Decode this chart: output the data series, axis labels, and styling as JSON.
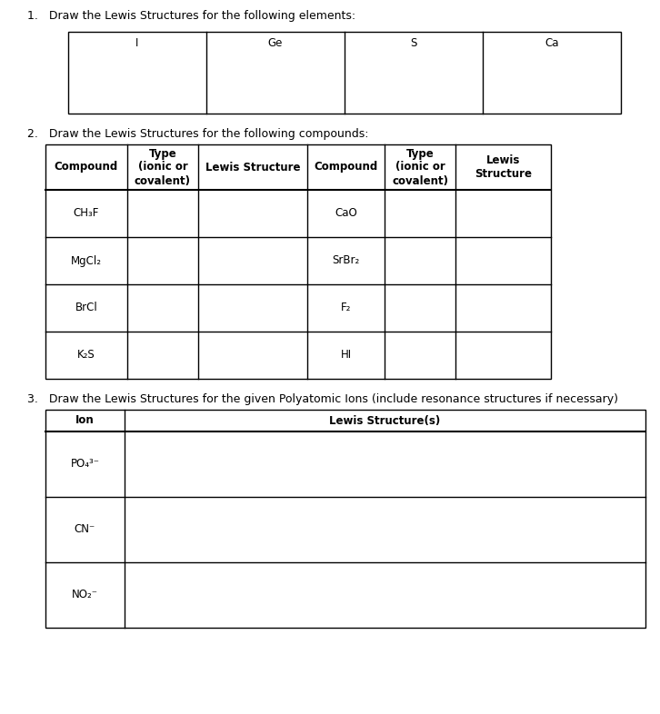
{
  "bg_color": "#ffffff",
  "q1_label": "1.   Draw the Lewis Structures for the following elements:",
  "q1_elements": [
    "I",
    "Ge",
    "S",
    "Ca"
  ],
  "q2_label": "2.   Draw the Lewis Structures for the following compounds:",
  "q2_headers_left": [
    "Compound",
    "Type\n(ionic or\ncovalent)",
    "Lewis Structure"
  ],
  "q2_headers_right": [
    "Compound",
    "Type\n(ionic or\ncovalent)",
    "Lewis\nStructure"
  ],
  "q2_compounds_left": [
    "CH₃F",
    "MgCl₂",
    "BrCl",
    "K₂S"
  ],
  "q2_compounds_right": [
    "CaO",
    "SrBr₂",
    "F₂",
    "HI"
  ],
  "q3_label": "3.   Draw the Lewis Structures for the given Polyatomic Ions (include resonance structures if necessary)",
  "q3_headers": [
    "Ion",
    "Lewis Structure(s)"
  ],
  "q3_ions": [
    "PO₄³⁻",
    "CN⁻",
    "NO₂⁻"
  ],
  "font_size_labels": 9,
  "font_size_table": 8.5,
  "font_size_header": 8.5,
  "line_color": "#000000",
  "line_width": 1.0
}
